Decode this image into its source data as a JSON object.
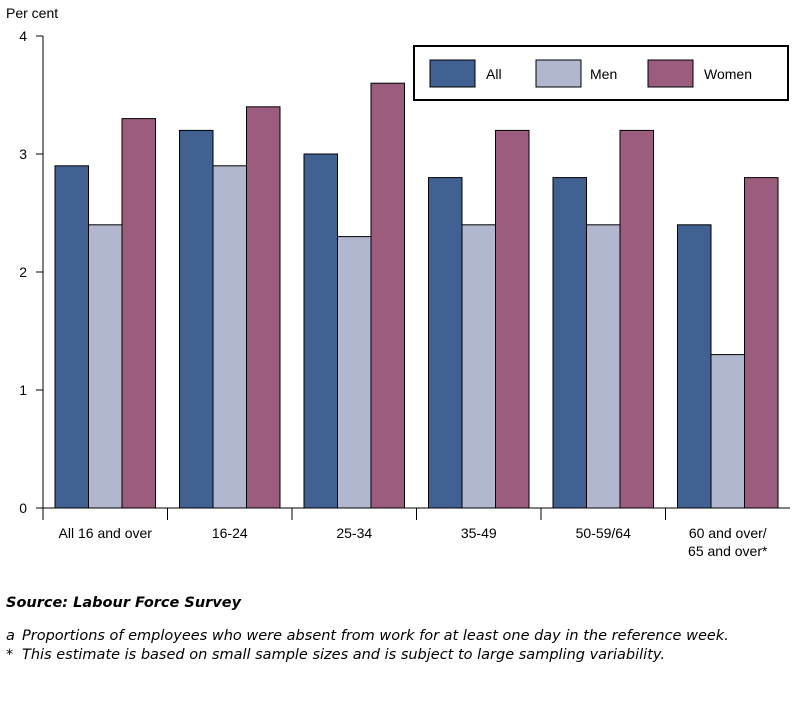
{
  "chart_data": {
    "type": "bar",
    "ylabel": "Per cent",
    "ylim": [
      0,
      4
    ],
    "yticks": [
      0,
      1,
      2,
      3,
      4
    ],
    "categories": [
      [
        "All 16 and over"
      ],
      [
        "16-24"
      ],
      [
        "25-34"
      ],
      [
        "35-49"
      ],
      [
        "50-59/64"
      ],
      [
        "60 and over/",
        "65 and over*"
      ]
    ],
    "series": [
      {
        "name": "All",
        "color": "#416192",
        "values": [
          2.9,
          3.2,
          3.0,
          2.8,
          2.8,
          2.4
        ]
      },
      {
        "name": "Men",
        "color": "#b0b7cf",
        "values": [
          2.4,
          2.9,
          2.3,
          2.4,
          2.4,
          1.3
        ]
      },
      {
        "name": "Women",
        "color": "#9c5c7e",
        "values": [
          3.3,
          3.4,
          3.6,
          3.2,
          3.2,
          2.8
        ]
      }
    ],
    "legend_position": "top-right",
    "grid": false
  },
  "notes": {
    "source": "Source: Labour Force Survey",
    "footnotes": [
      {
        "mark": "a",
        "text": "Proportions of employees who were absent from work for at least one day in the reference week."
      },
      {
        "mark": "*",
        "text": "This estimate is based on small sample sizes and is subject to large sampling variability."
      }
    ]
  }
}
